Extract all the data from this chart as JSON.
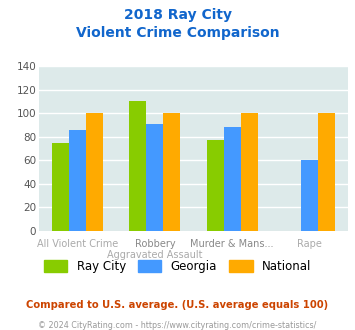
{
  "title_line1": "2018 Ray City",
  "title_line2": "Violent Crime Comparison",
  "top_labels": [
    "",
    "Robbery",
    "Murder & Mans...",
    ""
  ],
  "bot_labels": [
    "All Violent Crime",
    "Aggravated Assault",
    "",
    "Rape"
  ],
  "series": {
    "Ray City": {
      "values": [
        75,
        110,
        77,
        null
      ],
      "color": "#88cc00"
    },
    "Georgia": {
      "values": [
        86,
        91,
        88,
        60
      ],
      "color": "#4499ff"
    },
    "National": {
      "values": [
        100,
        100,
        100,
        100
      ],
      "color": "#ffaa00"
    }
  },
  "ylim": [
    0,
    140
  ],
  "yticks": [
    0,
    20,
    40,
    60,
    80,
    100,
    120,
    140
  ],
  "plot_bg_color": "#ddeaea",
  "grid_color": "#ffffff",
  "title_color": "#1166cc",
  "footer_text": "Compared to U.S. average. (U.S. average equals 100)",
  "copyright_text": "© 2024 CityRating.com - https://www.cityrating.com/crime-statistics/",
  "footer_color": "#cc4400",
  "copyright_color": "#999999",
  "bar_width": 0.22
}
